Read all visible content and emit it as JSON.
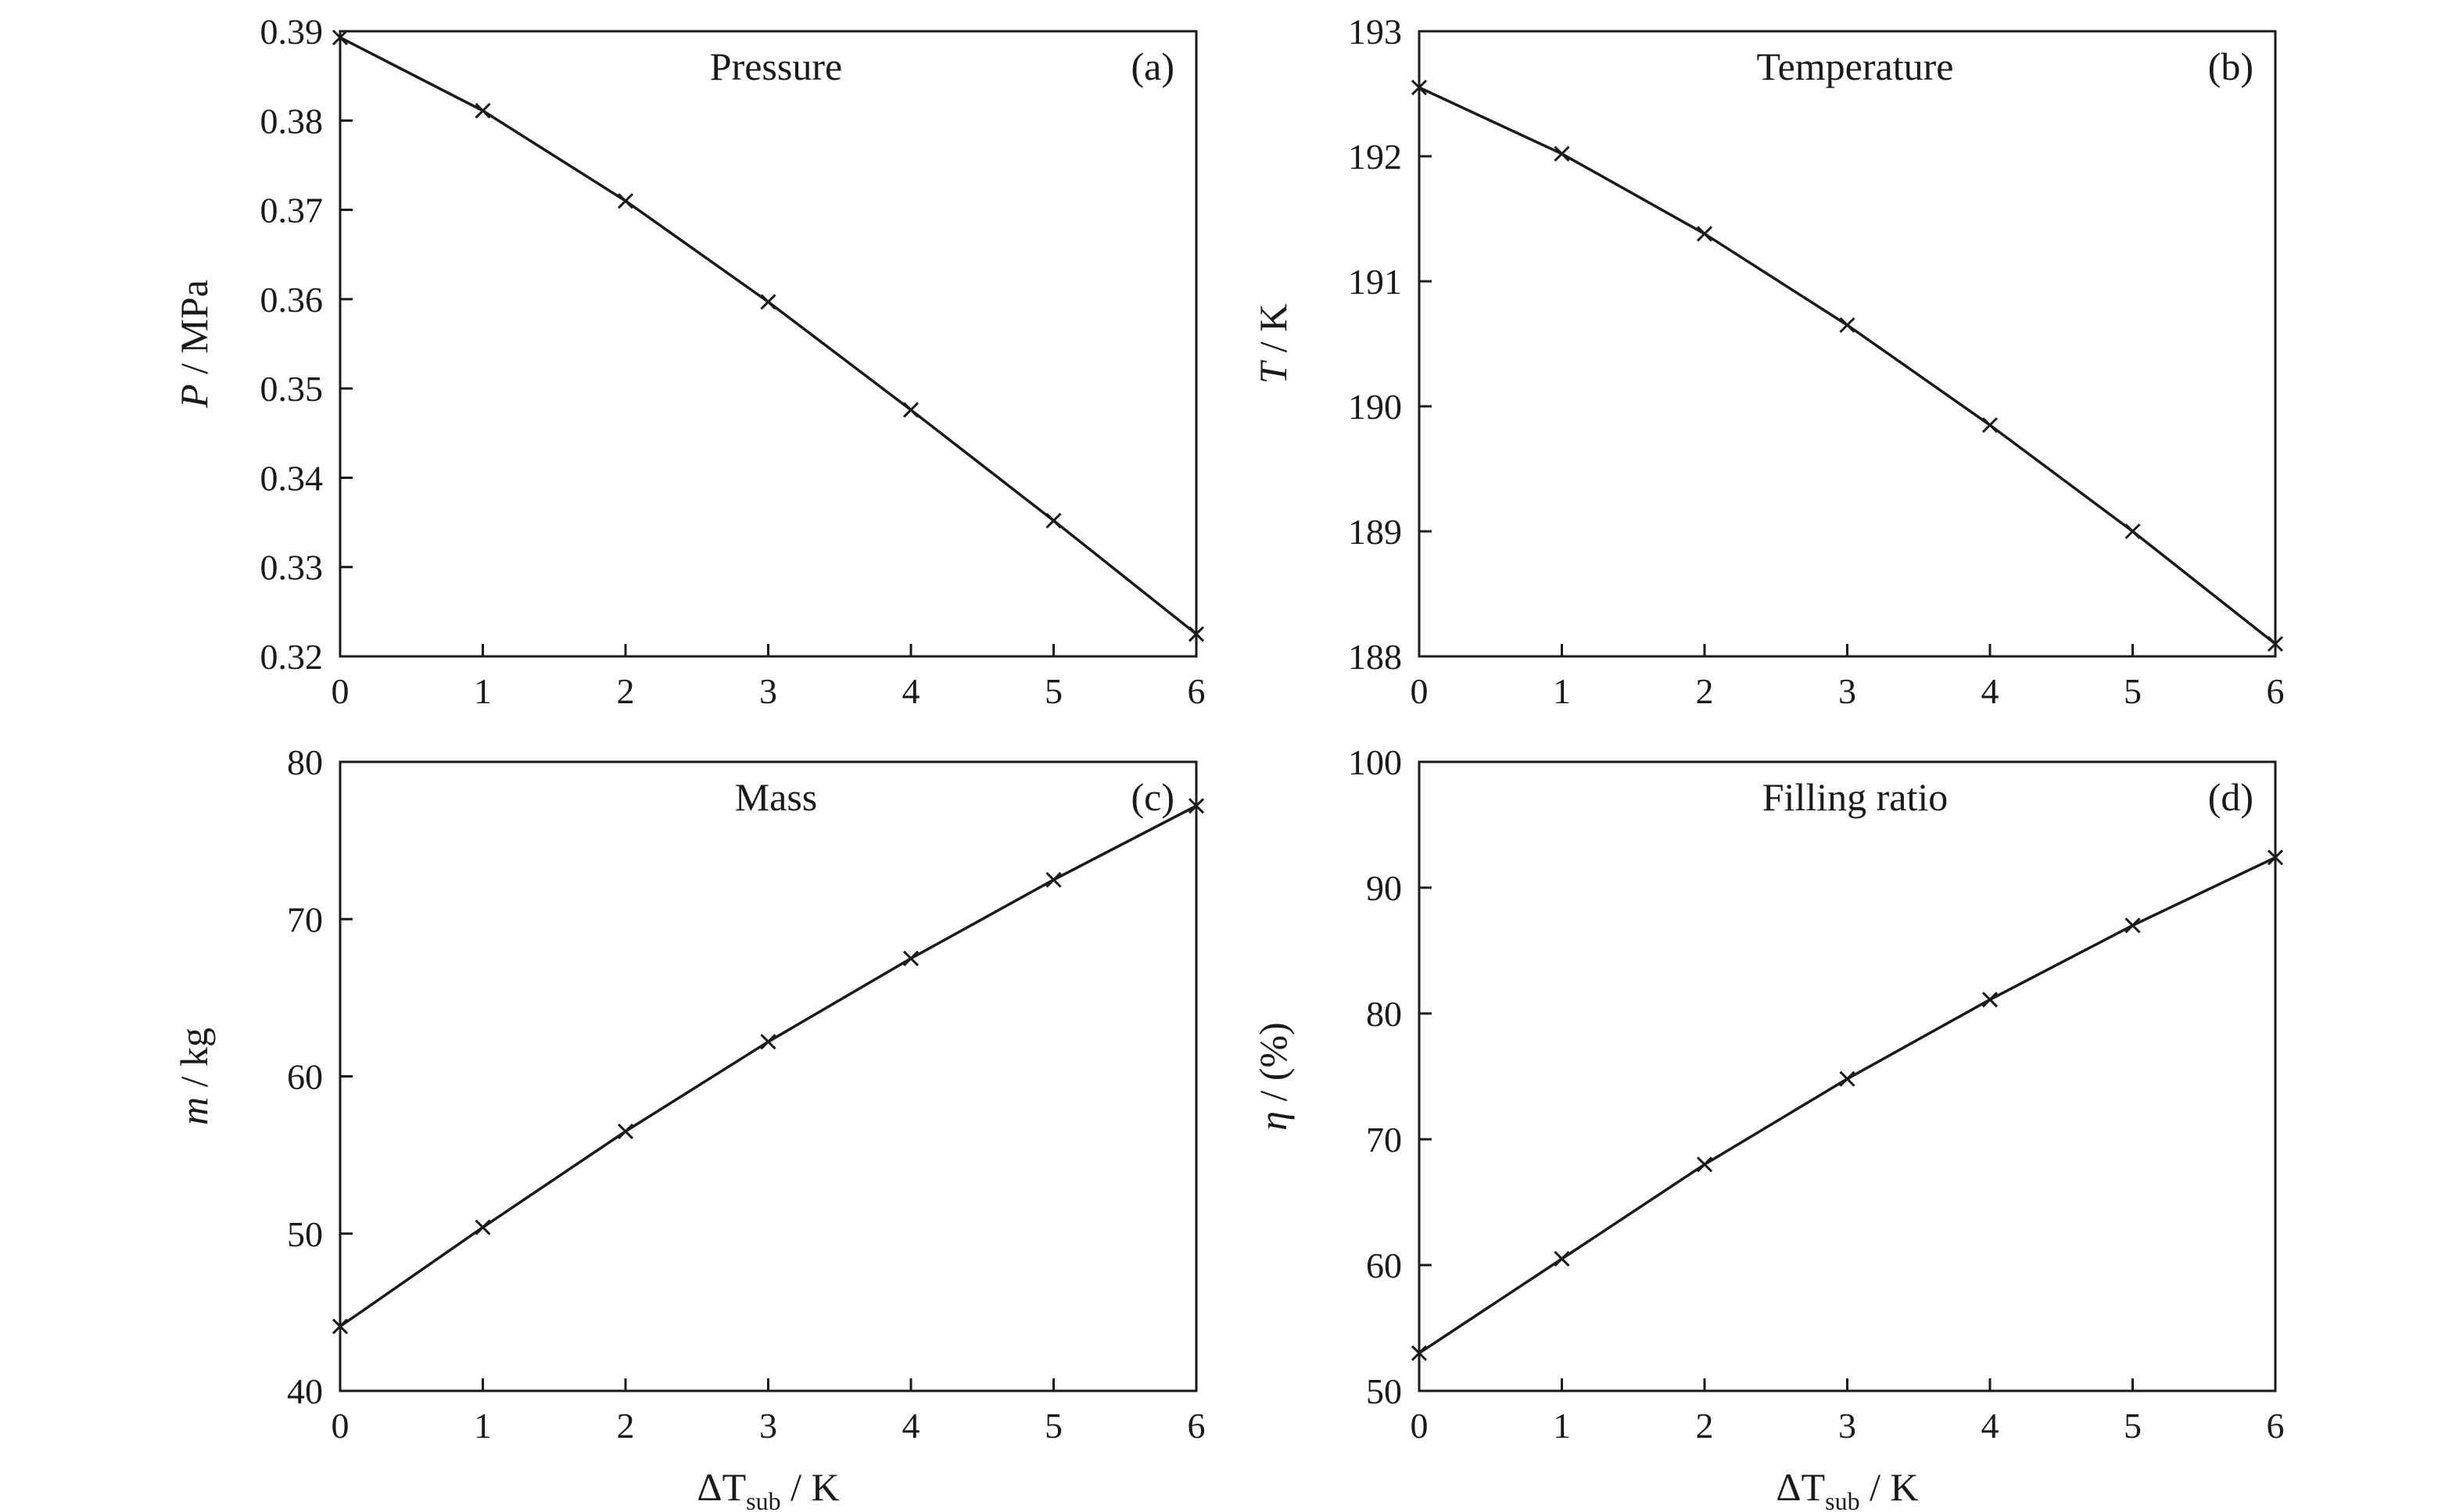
{
  "chart_data": [
    {
      "type": "line",
      "title": "Pressure",
      "tag": "(a)",
      "xlabel": "",
      "ylabel": {
        "symbol": "P",
        "unit": " / MPa"
      },
      "xlim": [
        0,
        6
      ],
      "ylim": [
        0.32,
        0.39
      ],
      "xticks": [
        "0",
        "1",
        "2",
        "3",
        "4",
        "5",
        "6"
      ],
      "yticks": [
        "0.32",
        "0.33",
        "0.34",
        "0.35",
        "0.36",
        "0.37",
        "0.38",
        "0.39"
      ],
      "grid": false,
      "x": [
        0,
        1,
        2,
        3,
        4,
        5,
        6
      ],
      "values": [
        0.3893,
        0.3811,
        0.371,
        0.3597,
        0.3476,
        0.3352,
        0.3225
      ]
    },
    {
      "type": "line",
      "title": "Temperature",
      "tag": "(b)",
      "xlabel": "",
      "ylabel": {
        "symbol": "T",
        "unit": " / K"
      },
      "xlim": [
        0,
        6
      ],
      "ylim": [
        188,
        193
      ],
      "xticks": [
        "0",
        "1",
        "2",
        "3",
        "4",
        "5",
        "6"
      ],
      "yticks": [
        "188",
        "189",
        "190",
        "191",
        "192",
        "193"
      ],
      "grid": false,
      "x": [
        0,
        1,
        2,
        3,
        4,
        5,
        6
      ],
      "values": [
        192.55,
        192.02,
        191.38,
        190.65,
        189.85,
        189.0,
        188.1
      ]
    },
    {
      "type": "line",
      "title": "Mass",
      "tag": "(c)",
      "xlabel": {
        "prefix": "ΔT",
        "subscript": "sub",
        "unit": " / K"
      },
      "ylabel": {
        "symbol": "m",
        "unit": " / kg"
      },
      "xlim": [
        0,
        6
      ],
      "ylim": [
        40,
        80
      ],
      "xticks": [
        "0",
        "1",
        "2",
        "3",
        "4",
        "5",
        "6"
      ],
      "yticks": [
        "40",
        "50",
        "60",
        "70",
        "80"
      ],
      "grid": false,
      "x": [
        0,
        1,
        2,
        3,
        4,
        5,
        6
      ],
      "values": [
        44.1,
        50.4,
        56.5,
        62.2,
        67.5,
        72.5,
        77.2
      ]
    },
    {
      "type": "line",
      "title": "Filling ratio",
      "tag": "(d)",
      "xlabel": {
        "prefix": "ΔT",
        "subscript": "sub",
        "unit": " / K"
      },
      "ylabel": {
        "symbol": "η",
        "unit": " / (%)"
      },
      "xlim": [
        0,
        6
      ],
      "ylim": [
        50,
        100
      ],
      "xticks": [
        "0",
        "1",
        "2",
        "3",
        "4",
        "5",
        "6"
      ],
      "yticks": [
        "50",
        "60",
        "70",
        "80",
        "90",
        "100"
      ],
      "grid": false,
      "x": [
        0,
        1,
        2,
        3,
        4,
        5,
        6
      ],
      "values": [
        53.0,
        60.5,
        68.0,
        74.8,
        81.1,
        87.0,
        92.4
      ]
    }
  ]
}
